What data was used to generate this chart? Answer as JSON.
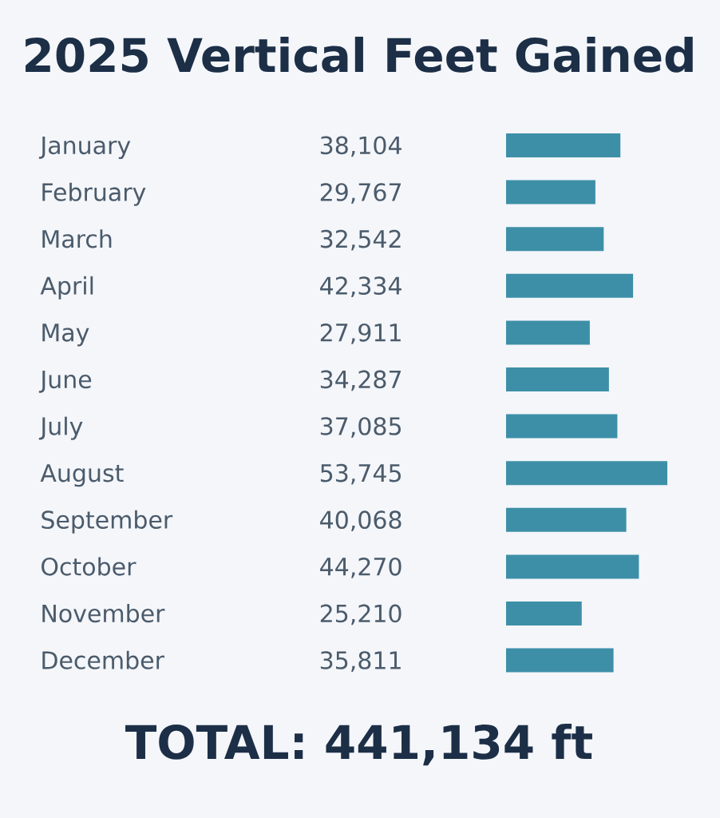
{
  "chart_data": {
    "type": "bar",
    "orientation": "horizontal",
    "title": "2025 Vertical Feet Gained",
    "categories": [
      "January",
      "February",
      "March",
      "April",
      "May",
      "June",
      "July",
      "August",
      "September",
      "October",
      "November",
      "December"
    ],
    "values": [
      38104,
      29767,
      32542,
      42334,
      27911,
      34287,
      37085,
      53745,
      40068,
      44270,
      25210,
      35811
    ],
    "value_labels": [
      "38,104",
      "29,767",
      "32,542",
      "42,334",
      "27,911",
      "34,287",
      "37,085",
      "53,745",
      "40,068",
      "44,270",
      "25,210",
      "35,811"
    ],
    "color": "#3d8fa7",
    "tick_labels": "y",
    "annotations": [
      "TOTAL: 441,134 ft"
    ]
  }
}
